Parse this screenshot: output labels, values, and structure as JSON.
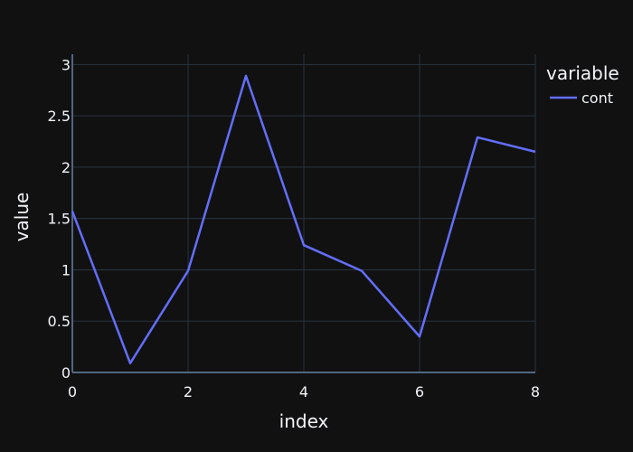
{
  "chart_data": {
    "type": "line",
    "x": [
      0,
      1,
      2,
      3,
      4,
      5,
      6,
      7,
      8
    ],
    "series": [
      {
        "name": "cont",
        "values": [
          1.57,
          0.09,
          0.99,
          2.89,
          1.24,
          0.99,
          0.35,
          2.29,
          2.15
        ],
        "color": "#636efa"
      }
    ],
    "xlabel": "index",
    "ylabel": "value",
    "xlim": [
      0,
      8
    ],
    "ylim": [
      0,
      3.1
    ],
    "xticks": [
      0,
      2,
      4,
      6,
      8
    ],
    "yticks": [
      0,
      0.5,
      1,
      1.5,
      2,
      2.5,
      3
    ],
    "legend_title": "variable",
    "legend_position": "top-right",
    "grid": true,
    "colors": {
      "background": "#111111",
      "grid": "#283442",
      "text": "#f2f5fa"
    }
  }
}
